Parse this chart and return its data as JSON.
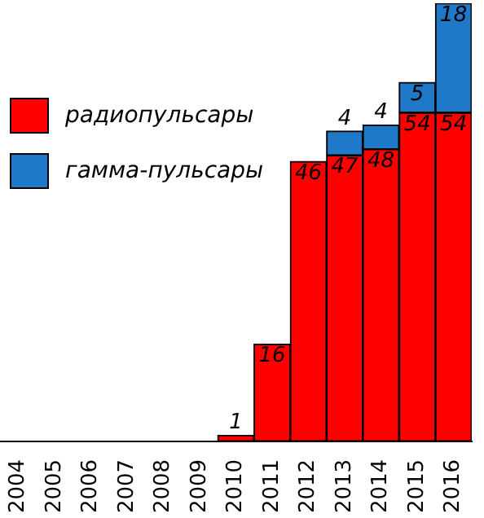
{
  "chart_data": {
    "type": "bar",
    "stacked": true,
    "data_labels": true,
    "legend": "top left",
    "categories": [
      "2004",
      "2005",
      "2006",
      "2007",
      "2008",
      "2009",
      "2010",
      "2011",
      "2012",
      "2013",
      "2014",
      "2015",
      "2016"
    ],
    "series": [
      {
        "name": "радиопульсары",
        "color": "#ff0000",
        "values": [
          null,
          null,
          null,
          null,
          null,
          null,
          1,
          16,
          46,
          47,
          48,
          54,
          54
        ]
      },
      {
        "name": "гамма-пульсары",
        "color": "#1f78c8",
        "values": [
          null,
          null,
          null,
          null,
          null,
          null,
          null,
          null,
          null,
          4,
          4,
          5,
          18
        ]
      }
    ]
  }
}
